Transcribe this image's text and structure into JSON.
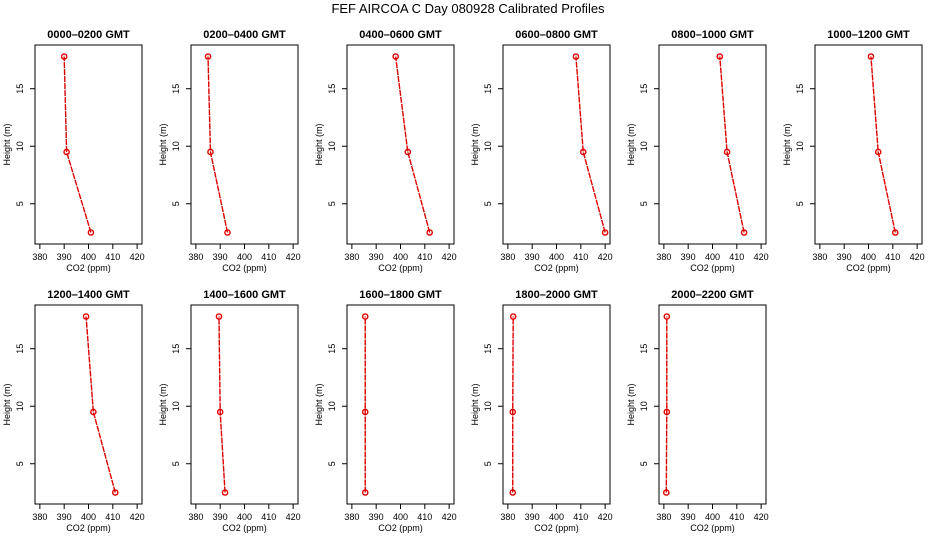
{
  "page": {
    "title": "FEF AIRCOA C  Day 080928  Calibrated Profiles"
  },
  "colors": {
    "series": "#dd0000",
    "axis": "#000000",
    "background": "#ffffff"
  },
  "chart_data": [
    {
      "type": "line",
      "title": "0000–0200 GMT",
      "xlabel": "CO2 (ppm)",
      "ylabel": "Height (m)",
      "xlim": [
        378,
        422
      ],
      "ylim": [
        1.5,
        18.8
      ],
      "xticks": [
        380,
        390,
        400,
        410,
        420
      ],
      "yticks": [
        5,
        10,
        15
      ],
      "grid": false,
      "x": [
        401,
        391,
        390
      ],
      "y": [
        2.5,
        9.5,
        17.8
      ]
    },
    {
      "type": "line",
      "title": "0200–0400 GMT",
      "xlabel": "CO2 (ppm)",
      "ylabel": "Height (m)",
      "xlim": [
        378,
        422
      ],
      "ylim": [
        1.5,
        18.8
      ],
      "xticks": [
        380,
        390,
        400,
        410,
        420
      ],
      "yticks": [
        5,
        10,
        15
      ],
      "grid": false,
      "x": [
        393,
        386,
        385
      ],
      "y": [
        2.5,
        9.5,
        17.8
      ]
    },
    {
      "type": "line",
      "title": "0400–0600 GMT",
      "xlabel": "CO2 (ppm)",
      "ylabel": "Height (m)",
      "xlim": [
        378,
        422
      ],
      "ylim": [
        1.5,
        18.8
      ],
      "xticks": [
        380,
        390,
        400,
        410,
        420
      ],
      "yticks": [
        5,
        10,
        15
      ],
      "grid": false,
      "x": [
        412,
        403,
        398
      ],
      "y": [
        2.5,
        9.5,
        17.8
      ]
    },
    {
      "type": "line",
      "title": "0600–0800 GMT",
      "xlabel": "CO2 (ppm)",
      "ylabel": "Height (m)",
      "xlim": [
        378,
        422
      ],
      "ylim": [
        1.5,
        18.8
      ],
      "xticks": [
        380,
        390,
        400,
        410,
        420
      ],
      "yticks": [
        5,
        10,
        15
      ],
      "grid": false,
      "x": [
        420,
        411,
        408
      ],
      "y": [
        2.5,
        9.5,
        17.8
      ]
    },
    {
      "type": "line",
      "title": "0800–1000 GMT",
      "xlabel": "CO2 (ppm)",
      "ylabel": "Height (m)",
      "xlim": [
        378,
        422
      ],
      "ylim": [
        1.5,
        18.8
      ],
      "xticks": [
        380,
        390,
        400,
        410,
        420
      ],
      "yticks": [
        5,
        10,
        15
      ],
      "grid": false,
      "x": [
        413,
        406,
        403
      ],
      "y": [
        2.5,
        9.5,
        17.8
      ]
    },
    {
      "type": "line",
      "title": "1000–1200 GMT",
      "xlabel": "CO2 (ppm)",
      "ylabel": "Height (m)",
      "xlim": [
        378,
        422
      ],
      "ylim": [
        1.5,
        18.8
      ],
      "xticks": [
        380,
        390,
        400,
        410,
        420
      ],
      "yticks": [
        5,
        10,
        15
      ],
      "grid": false,
      "x": [
        411,
        404,
        401
      ],
      "y": [
        2.5,
        9.5,
        17.8
      ]
    },
    {
      "type": "line",
      "title": "1200–1400 GMT",
      "xlabel": "CO2 (ppm)",
      "ylabel": "Height (m)",
      "xlim": [
        378,
        422
      ],
      "ylim": [
        1.5,
        18.8
      ],
      "xticks": [
        380,
        390,
        400,
        410,
        420
      ],
      "yticks": [
        5,
        10,
        15
      ],
      "grid": false,
      "x": [
        411,
        402,
        399
      ],
      "y": [
        2.5,
        9.5,
        17.8
      ]
    },
    {
      "type": "line",
      "title": "1400–1600 GMT",
      "xlabel": "CO2 (ppm)",
      "ylabel": "Height (m)",
      "xlim": [
        378,
        422
      ],
      "ylim": [
        1.5,
        18.8
      ],
      "xticks": [
        380,
        390,
        400,
        410,
        420
      ],
      "yticks": [
        5,
        10,
        15
      ],
      "grid": false,
      "x": [
        392,
        390,
        389.5
      ],
      "y": [
        2.5,
        9.5,
        17.8
      ]
    },
    {
      "type": "line",
      "title": "1600–1800 GMT",
      "xlabel": "CO2 (ppm)",
      "ylabel": "Height (m)",
      "xlim": [
        378,
        422
      ],
      "ylim": [
        1.5,
        18.8
      ],
      "xticks": [
        380,
        390,
        400,
        410,
        420
      ],
      "yticks": [
        5,
        10,
        15
      ],
      "grid": false,
      "x": [
        385.5,
        385.5,
        385.5
      ],
      "y": [
        2.5,
        9.5,
        17.8
      ]
    },
    {
      "type": "line",
      "title": "1800–2000 GMT",
      "xlabel": "CO2 (ppm)",
      "ylabel": "Height (m)",
      "xlim": [
        378,
        422
      ],
      "ylim": [
        1.5,
        18.8
      ],
      "xticks": [
        380,
        390,
        400,
        410,
        420
      ],
      "yticks": [
        5,
        10,
        15
      ],
      "grid": false,
      "x": [
        382,
        382,
        382.2
      ],
      "y": [
        2.5,
        9.5,
        17.8
      ]
    },
    {
      "type": "line",
      "title": "2000–2200 GMT",
      "xlabel": "CO2 (ppm)",
      "ylabel": "Height (m)",
      "xlim": [
        378,
        422
      ],
      "ylim": [
        1.5,
        18.8
      ],
      "xticks": [
        380,
        390,
        400,
        410,
        420
      ],
      "yticks": [
        5,
        10,
        15
      ],
      "grid": false,
      "x": [
        381,
        381.2,
        381.2
      ],
      "y": [
        2.5,
        9.5,
        17.8
      ]
    }
  ]
}
